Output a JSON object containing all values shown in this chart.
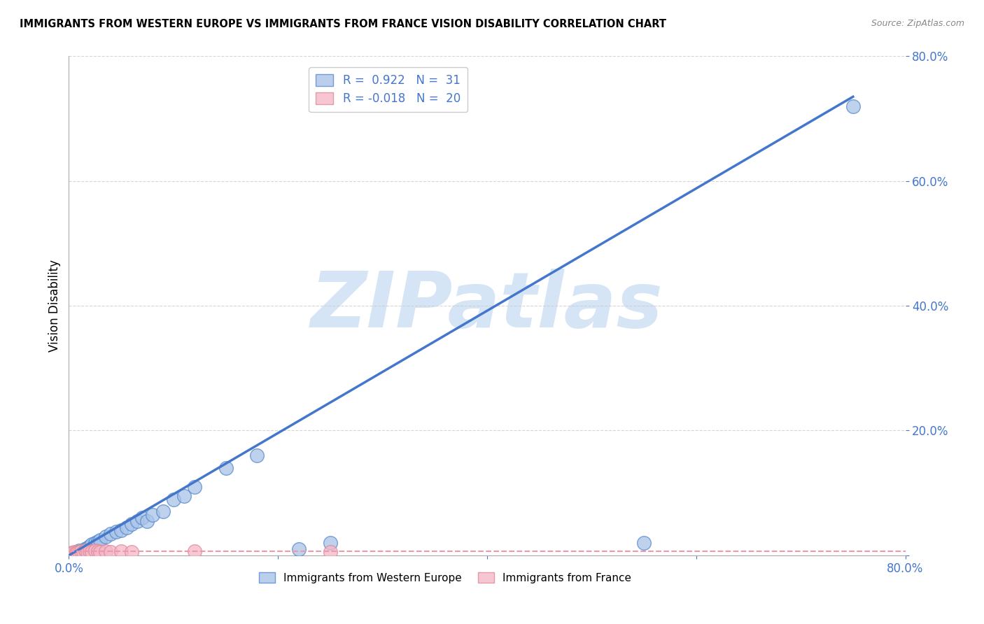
{
  "title": "IMMIGRANTS FROM WESTERN EUROPE VS IMMIGRANTS FROM FRANCE VISION DISABILITY CORRELATION CHART",
  "source": "Source: ZipAtlas.com",
  "ylabel": "Vision Disability",
  "xlim": [
    0.0,
    0.8
  ],
  "ylim": [
    0.0,
    0.8
  ],
  "ytick_vals": [
    0.0,
    0.2,
    0.4,
    0.6,
    0.8
  ],
  "xtick_vals": [
    0.0,
    0.2,
    0.4,
    0.6,
    0.8
  ],
  "grid_color": "#cccccc",
  "blue_R": "0.922",
  "blue_N": "31",
  "pink_R": "-0.018",
  "pink_N": "20",
  "blue_color": "#aac4e8",
  "pink_color": "#f5b8c8",
  "blue_edge_color": "#5588cc",
  "pink_edge_color": "#dd8899",
  "blue_line_color": "#4477cc",
  "pink_line_color": "#ee99aa",
  "axis_label_color": "#4477cc",
  "watermark_color": "#d5e5f5",
  "blue_scatter_x": [
    0.005,
    0.008,
    0.01,
    0.012,
    0.015,
    0.018,
    0.02,
    0.022,
    0.025,
    0.028,
    0.03,
    0.035,
    0.04,
    0.045,
    0.05,
    0.055,
    0.06,
    0.065,
    0.07,
    0.075,
    0.08,
    0.09,
    0.1,
    0.11,
    0.12,
    0.15,
    0.18,
    0.22,
    0.25,
    0.55,
    0.75
  ],
  "blue_scatter_y": [
    0.003,
    0.005,
    0.008,
    0.006,
    0.01,
    0.012,
    0.015,
    0.018,
    0.02,
    0.022,
    0.025,
    0.03,
    0.035,
    0.038,
    0.04,
    0.045,
    0.05,
    0.055,
    0.06,
    0.055,
    0.065,
    0.07,
    0.09,
    0.095,
    0.11,
    0.14,
    0.16,
    0.01,
    0.02,
    0.02,
    0.72
  ],
  "pink_scatter_x": [
    0.003,
    0.005,
    0.007,
    0.008,
    0.01,
    0.012,
    0.014,
    0.016,
    0.018,
    0.02,
    0.022,
    0.025,
    0.028,
    0.03,
    0.035,
    0.04,
    0.05,
    0.06,
    0.12,
    0.25
  ],
  "pink_scatter_y": [
    0.004,
    0.005,
    0.006,
    0.004,
    0.006,
    0.007,
    0.006,
    0.008,
    0.006,
    0.007,
    0.006,
    0.008,
    0.007,
    0.006,
    0.007,
    0.006,
    0.007,
    0.006,
    0.007,
    0.006
  ],
  "blue_line_x0": 0.0,
  "blue_line_x1": 0.75,
  "blue_line_y0": 0.0,
  "blue_line_y1": 0.735,
  "pink_line_y_val": 0.007,
  "pink_line_x0": 0.0,
  "pink_line_x1": 0.8
}
